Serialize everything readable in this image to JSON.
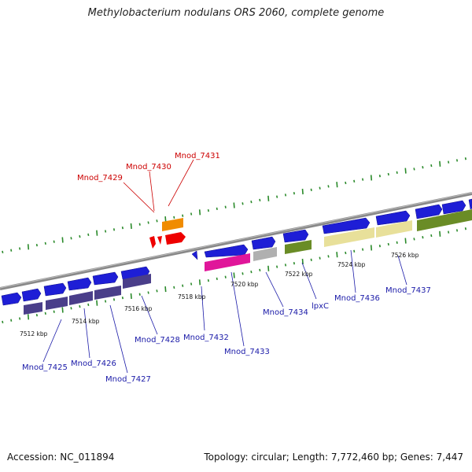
{
  "title": "Methylobacterium nodulans ORS 2060, complete genome",
  "footer": {
    "accession": "Accession: NC_011894",
    "summary": "Topology: circular; Length: 7,772,460 bp; Genes: 7,447"
  },
  "ruler": [
    "7512 kbp",
    "7514 kbp",
    "7516 kbp",
    "7518 kbp",
    "7520 kbp",
    "7522 kbp",
    "7524 kbp",
    "7526 kbp"
  ],
  "gene_labels": [
    "Mnod_7429",
    "Mnod_7430",
    "Mnod_7431",
    "Mnod_7425",
    "Mnod_7426",
    "Mnod_7427",
    "Mnod_7428",
    "Mnod_7432",
    "Mnod_7433",
    "Mnod_7434",
    "lpxC",
    "Mnod_7436",
    "Mnod_7437"
  ],
  "colors": {
    "gene_arrow": "#1e1ed6",
    "backbone": "#888888",
    "tick": "#2a8a2a",
    "label_blue": "#1a1aa8",
    "label_red": "#cc0000",
    "feature_orange": "#f08c00",
    "feature_red": "#ee0000",
    "feature_purple": "#4a3e8a",
    "feature_pink": "#e0169a",
    "feature_grey": "#b0b0b0",
    "feature_olive": "#6a8c26",
    "feature_khaki": "#e8e09a"
  }
}
